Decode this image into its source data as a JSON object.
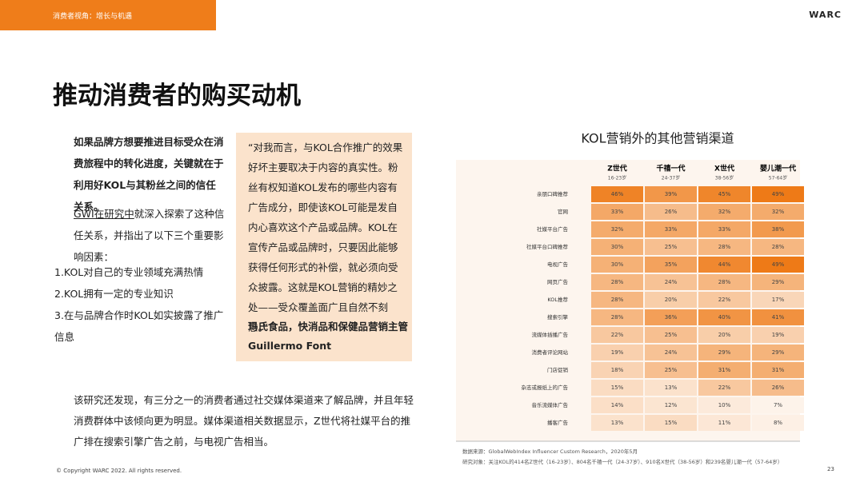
{
  "header": {
    "section": "消费者视角：增长与机遇",
    "brand": "WARC"
  },
  "title": "推动消费者的购买动机",
  "left": {
    "intro": "如果品牌方想要推进目标受众在消费旅程中的转化进度，关键就在于利用好KOL与其粉丝之间的信任关系。",
    "link": "GWI在研究中",
    "after_link": "就深入探索了这种信任关系，并指出了以下三个重要影响因素：",
    "items": [
      "1.KOL对自己的专业领域充满热情",
      "2.KOL拥有一定的专业知识",
      "3.在与品牌合作时KOL如实披露了推广信息"
    ]
  },
  "quote": {
    "text": "“对我而言，与KOL合作推广的效果好坏主要取决于内容的真实性。粉丝有权知道KOL发布的哪些内容有广告成分，即使该KOL可能是发自内心喜欢这个产品或品牌。KOL在宣传产品或品牌时，只要因此能够获得任何形式的补偿，就必须向受众披露。这就是KOL营销的精妙之处——受众覆盖面广且自然不刻意。”",
    "role": "玛氏食品，快消品和保健品营销主管",
    "person": "Guillermo Font"
  },
  "bottom": "该研究还发现，有三分之一的消费者通过社交媒体渠道来了解品牌，并且年轻消费群体中该倾向更为明显。媒体渠道相关数据显示，Z世代将社媒平台的推广排在搜索引擎广告之前，与电视广告相当。",
  "chart_data": {
    "type": "heatmap",
    "title": "KOL营销外的其他营销渠道",
    "colors": [
      "#fdf3ea",
      "#ee7a17"
    ],
    "categories": [
      "亲朋口碑推荐",
      "官网",
      "社媒平台广告",
      "社媒平台口碑推荐",
      "电视广告",
      "网页广告",
      "KOL推荐",
      "搜索引擎",
      "流媒体插播广告",
      "消费者评论网站",
      "门店促销",
      "杂志或报纸上的广告",
      "音乐流媒体广告",
      "播客广告"
    ],
    "series": [
      {
        "name": "Z世代",
        "age": "16-23岁",
        "values": [
          46,
          33,
          32,
          30,
          30,
          28,
          28,
          28,
          22,
          19,
          18,
          15,
          14,
          13
        ],
        "value_labels": [
          "46%",
          "33%",
          "32%",
          "30%",
          "30%",
          "28%",
          "28%",
          "28%",
          "22%",
          "19%",
          "18%",
          "15%",
          "14%",
          "13%"
        ]
      },
      {
        "name": "千禧一代",
        "age": "24-37岁",
        "values": [
          39,
          26,
          33,
          25,
          35,
          24,
          20,
          36,
          25,
          24,
          25,
          13,
          12,
          15
        ],
        "value_labels": [
          "39%",
          "26%",
          "33%",
          "25%",
          "35%",
          "24%",
          "20%",
          "36%",
          "25%",
          "24%",
          "25%",
          "13%",
          "12%",
          "15%"
        ]
      },
      {
        "name": "X世代",
        "age": "38-56岁",
        "values": [
          45,
          32,
          33,
          28,
          44,
          28,
          22,
          40,
          20,
          29,
          31,
          22,
          10,
          11
        ],
        "value_labels": [
          "45%",
          "32%",
          "33%",
          "28%",
          "44%",
          "28%",
          "22%",
          "40%",
          "20%",
          "29%",
          "31%",
          "22%",
          "10%",
          "11%"
        ]
      },
      {
        "name": "婴儿潮一代",
        "age": "57-64岁",
        "values": [
          49,
          32,
          38,
          28,
          49,
          29,
          17,
          41,
          19,
          29,
          31,
          26,
          7,
          8
        ],
        "value_labels": [
          "49%",
          "32%",
          "38%",
          "28%",
          "49%",
          "29%",
          "17%",
          "41%",
          "19%",
          "29%",
          "31%",
          "26%",
          "7%",
          "8%"
        ]
      }
    ],
    "source": "数据来源：GlobalWebIndex Influencer Custom Research，2020年5月",
    "sample": "研究对象：关注KOL的414名Z世代（16-23岁）、804名千禧一代（24-37岁）、910名X世代（38-56岁）和239名婴儿潮一代（57-64岁）"
  },
  "footer": {
    "copyright": "© Copyright WARC 2022. All rights reserved.",
    "page": "23"
  }
}
